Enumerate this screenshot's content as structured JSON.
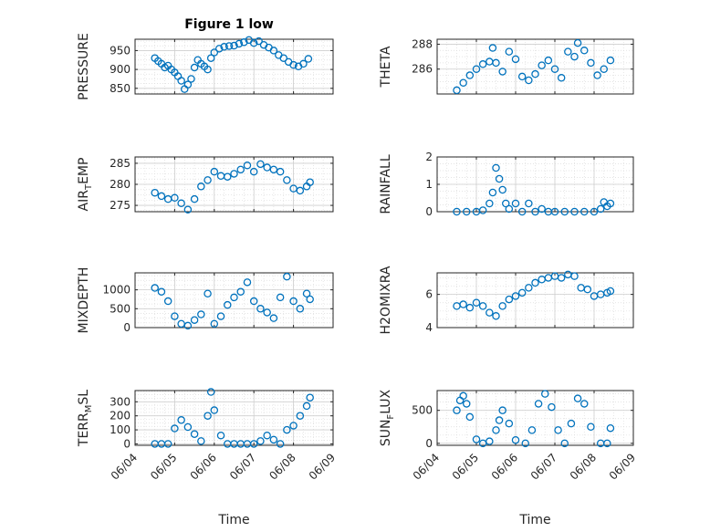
{
  "figure": {
    "title": "Figure 1 low",
    "xlabel": "Time"
  },
  "chart_data": [
    {
      "type": "scatter",
      "name": "PRESSURE",
      "ylabel": "PRESSURE",
      "xlim": [
        "06/04",
        "06/09"
      ],
      "ylim": [
        835,
        980
      ],
      "yticks": [
        850,
        900,
        950
      ],
      "grid": true,
      "marker": "circle-open",
      "color": "#0072BD",
      "x": [
        "06/04 12:00",
        "06/04 14:00",
        "06/04 16:00",
        "06/04 18:00",
        "06/04 20:00",
        "06/04 22:00",
        "06/05 00:00",
        "06/05 02:00",
        "06/05 04:00",
        "06/05 06:00",
        "06/05 08:00",
        "06/05 10:00",
        "06/05 12:00",
        "06/05 14:00",
        "06/05 16:00",
        "06/05 18:00",
        "06/05 20:00",
        "06/05 22:00",
        "06/06 00:00",
        "06/06 03:00",
        "06/06 06:00",
        "06/06 09:00",
        "06/06 12:00",
        "06/06 15:00",
        "06/06 18:00",
        "06/06 21:00",
        "06/07 00:00",
        "06/07 03:00",
        "06/07 06:00",
        "06/07 09:00",
        "06/07 12:00",
        "06/07 15:00",
        "06/07 18:00",
        "06/07 21:00",
        "06/08 00:00",
        "06/08 03:00",
        "06/08 06:00",
        "06/08 09:00"
      ],
      "y": [
        930,
        922,
        915,
        905,
        910,
        900,
        892,
        882,
        870,
        848,
        860,
        875,
        905,
        925,
        915,
        908,
        900,
        930,
        945,
        955,
        960,
        962,
        963,
        968,
        972,
        978,
        970,
        975,
        965,
        958,
        950,
        938,
        930,
        920,
        912,
        908,
        915,
        928
      ]
    },
    {
      "type": "scatter",
      "name": "THETA",
      "ylabel": "THETA",
      "xlim": [
        "06/04",
        "06/09"
      ],
      "ylim": [
        284.0,
        288.4
      ],
      "yticks": [
        286,
        288
      ],
      "grid": true,
      "marker": "circle-open",
      "color": "#0072BD",
      "x": [
        "06/04 12:00",
        "06/04 16:00",
        "06/04 20:00",
        "06/05 00:00",
        "06/05 04:00",
        "06/05 08:00",
        "06/05 10:00",
        "06/05 12:00",
        "06/05 16:00",
        "06/05 20:00",
        "06/06 00:00",
        "06/06 04:00",
        "06/06 08:00",
        "06/06 12:00",
        "06/06 16:00",
        "06/06 20:00",
        "06/07 00:00",
        "06/07 04:00",
        "06/07 08:00",
        "06/07 12:00",
        "06/07 14:00",
        "06/07 18:00",
        "06/07 22:00",
        "06/08 02:00",
        "06/08 06:00",
        "06/08 10:00"
      ],
      "y": [
        284.3,
        284.9,
        285.5,
        286.0,
        286.4,
        286.6,
        287.7,
        286.5,
        285.8,
        287.4,
        286.8,
        285.4,
        285.1,
        285.6,
        286.3,
        286.7,
        286.0,
        285.3,
        287.4,
        287.0,
        288.1,
        287.5,
        286.5,
        285.5,
        286.0,
        286.7
      ]
    },
    {
      "type": "scatter",
      "name": "AIR_TEMP",
      "ylabel": "AIR_TEMP",
      "xlim": [
        "06/04",
        "06/09"
      ],
      "ylim": [
        273.5,
        286.5
      ],
      "yticks": [
        275,
        280,
        285
      ],
      "grid": true,
      "marker": "circle-open",
      "color": "#0072BD",
      "x": [
        "06/04 12:00",
        "06/04 16:00",
        "06/04 20:00",
        "06/05 00:00",
        "06/05 04:00",
        "06/05 08:00",
        "06/05 12:00",
        "06/05 16:00",
        "06/05 20:00",
        "06/06 00:00",
        "06/06 04:00",
        "06/06 08:00",
        "06/06 12:00",
        "06/06 16:00",
        "06/06 20:00",
        "06/07 00:00",
        "06/07 04:00",
        "06/07 08:00",
        "06/07 12:00",
        "06/07 16:00",
        "06/07 20:00",
        "06/08 00:00",
        "06/08 04:00",
        "06/08 08:00",
        "06/08 10:00"
      ],
      "y": [
        278.0,
        277.2,
        276.5,
        276.8,
        275.5,
        274.0,
        276.5,
        279.5,
        281.0,
        283.0,
        282.0,
        281.8,
        282.5,
        283.5,
        284.5,
        283.0,
        284.8,
        284.0,
        283.5,
        283.0,
        281.0,
        279.0,
        278.5,
        279.5,
        280.5
      ]
    },
    {
      "type": "scatter",
      "name": "RAINFALL",
      "ylabel": "RAINFALL",
      "xlim": [
        "06/04",
        "06/09"
      ],
      "ylim": [
        0,
        2
      ],
      "yticks": [
        0,
        1,
        2
      ],
      "grid": true,
      "marker": "circle-open",
      "color": "#0072BD",
      "x": [
        "06/04 12:00",
        "06/04 18:00",
        "06/05 00:00",
        "06/05 04:00",
        "06/05 08:00",
        "06/05 10:00",
        "06/05 12:00",
        "06/05 14:00",
        "06/05 16:00",
        "06/05 18:00",
        "06/05 20:00",
        "06/06 00:00",
        "06/06 04:00",
        "06/06 08:00",
        "06/06 12:00",
        "06/06 16:00",
        "06/06 20:00",
        "06/07 00:00",
        "06/07 06:00",
        "06/07 12:00",
        "06/07 18:00",
        "06/08 00:00",
        "06/08 04:00",
        "06/08 06:00",
        "06/08 08:00",
        "06/08 10:00"
      ],
      "y": [
        0.0,
        0.0,
        0.0,
        0.05,
        0.3,
        0.7,
        1.6,
        1.2,
        0.8,
        0.3,
        0.1,
        0.3,
        0.0,
        0.3,
        0.0,
        0.1,
        0.0,
        0.0,
        0.0,
        0.0,
        0.0,
        0.0,
        0.1,
        0.35,
        0.2,
        0.3
      ]
    },
    {
      "type": "scatter",
      "name": "MIXDEPTH",
      "ylabel": "MIXDEPTH",
      "xlim": [
        "06/04",
        "06/09"
      ],
      "ylim": [
        0,
        1450
      ],
      "yticks": [
        0,
        500,
        1000
      ],
      "grid": true,
      "marker": "circle-open",
      "color": "#0072BD",
      "x": [
        "06/04 12:00",
        "06/04 16:00",
        "06/04 20:00",
        "06/05 00:00",
        "06/05 04:00",
        "06/05 08:00",
        "06/05 12:00",
        "06/05 16:00",
        "06/05 20:00",
        "06/06 00:00",
        "06/06 04:00",
        "06/06 08:00",
        "06/06 12:00",
        "06/06 16:00",
        "06/06 20:00",
        "06/07 00:00",
        "06/07 04:00",
        "06/07 08:00",
        "06/07 12:00",
        "06/07 16:00",
        "06/07 20:00",
        "06/08 00:00",
        "06/08 04:00",
        "06/08 08:00",
        "06/08 10:00"
      ],
      "y": [
        1050,
        950,
        700,
        300,
        100,
        50,
        200,
        350,
        900,
        100,
        300,
        600,
        800,
        950,
        1200,
        700,
        500,
        400,
        250,
        800,
        1350,
        700,
        500,
        900,
        750
      ]
    },
    {
      "type": "scatter",
      "name": "H2OMIXRA",
      "ylabel": "H2OMIXRA",
      "xlim": [
        "06/04",
        "06/09"
      ],
      "ylim": [
        4,
        7.3
      ],
      "yticks": [
        4,
        6
      ],
      "grid": true,
      "marker": "circle-open",
      "color": "#0072BD",
      "x": [
        "06/04 12:00",
        "06/04 16:00",
        "06/04 20:00",
        "06/05 00:00",
        "06/05 04:00",
        "06/05 08:00",
        "06/05 12:00",
        "06/05 16:00",
        "06/05 20:00",
        "06/06 00:00",
        "06/06 04:00",
        "06/06 08:00",
        "06/06 12:00",
        "06/06 16:00",
        "06/06 20:00",
        "06/07 00:00",
        "06/07 04:00",
        "06/07 08:00",
        "06/07 12:00",
        "06/07 16:00",
        "06/07 20:00",
        "06/08 00:00",
        "06/08 04:00",
        "06/08 08:00",
        "06/08 10:00"
      ],
      "y": [
        5.3,
        5.4,
        5.2,
        5.5,
        5.3,
        4.9,
        4.7,
        5.3,
        5.7,
        5.9,
        6.1,
        6.4,
        6.7,
        6.9,
        7.0,
        7.1,
        7.0,
        7.2,
        7.1,
        6.4,
        6.3,
        5.9,
        6.0,
        6.1,
        6.2
      ]
    },
    {
      "type": "scatter",
      "name": "TERR_MSL",
      "ylabel": "TERR_MSL",
      "xlim": [
        "06/04",
        "06/09"
      ],
      "ylim": [
        -10,
        380
      ],
      "yticks": [
        0,
        100,
        200,
        300
      ],
      "grid": true,
      "marker": "circle-open",
      "color": "#0072BD",
      "xlabel": "Time",
      "xticks": [
        "06/04",
        "06/05",
        "06/06",
        "06/07",
        "06/08",
        "06/09"
      ],
      "x": [
        "06/04 12:00",
        "06/04 16:00",
        "06/04 20:00",
        "06/05 00:00",
        "06/05 04:00",
        "06/05 08:00",
        "06/05 12:00",
        "06/05 16:00",
        "06/05 20:00",
        "06/05 22:00",
        "06/06 00:00",
        "06/06 04:00",
        "06/06 08:00",
        "06/06 12:00",
        "06/06 16:00",
        "06/06 20:00",
        "06/07 00:00",
        "06/07 04:00",
        "06/07 08:00",
        "06/07 12:00",
        "06/07 16:00",
        "06/07 20:00",
        "06/08 00:00",
        "06/08 04:00",
        "06/08 08:00",
        "06/08 10:00"
      ],
      "y": [
        0,
        0,
        0,
        110,
        170,
        120,
        70,
        20,
        200,
        370,
        240,
        60,
        0,
        0,
        0,
        0,
        0,
        20,
        60,
        30,
        0,
        100,
        130,
        200,
        270,
        330
      ]
    },
    {
      "type": "scatter",
      "name": "SUN_FLUX",
      "ylabel": "SUN_FLUX",
      "xlim": [
        "06/04",
        "06/09"
      ],
      "ylim": [
        -30,
        800
      ],
      "yticks": [
        0,
        500
      ],
      "grid": true,
      "marker": "circle-open",
      "color": "#0072BD",
      "xlabel": "Time",
      "xticks": [
        "06/04",
        "06/05",
        "06/06",
        "06/07",
        "06/08",
        "06/09"
      ],
      "x": [
        "06/04 12:00",
        "06/04 14:00",
        "06/04 16:00",
        "06/04 18:00",
        "06/04 20:00",
        "06/05 00:00",
        "06/05 04:00",
        "06/05 08:00",
        "06/05 12:00",
        "06/05 14:00",
        "06/05 16:00",
        "06/05 20:00",
        "06/06 00:00",
        "06/06 06:00",
        "06/06 10:00",
        "06/06 14:00",
        "06/06 18:00",
        "06/06 22:00",
        "06/07 02:00",
        "06/07 06:00",
        "06/07 10:00",
        "06/07 14:00",
        "06/07 18:00",
        "06/07 22:00",
        "06/08 04:00",
        "06/08 08:00",
        "06/08 10:00"
      ],
      "y": [
        500,
        650,
        720,
        600,
        400,
        60,
        0,
        30,
        200,
        350,
        500,
        300,
        50,
        0,
        200,
        600,
        750,
        550,
        200,
        0,
        300,
        680,
        600,
        250,
        0,
        0,
        230
      ]
    }
  ]
}
